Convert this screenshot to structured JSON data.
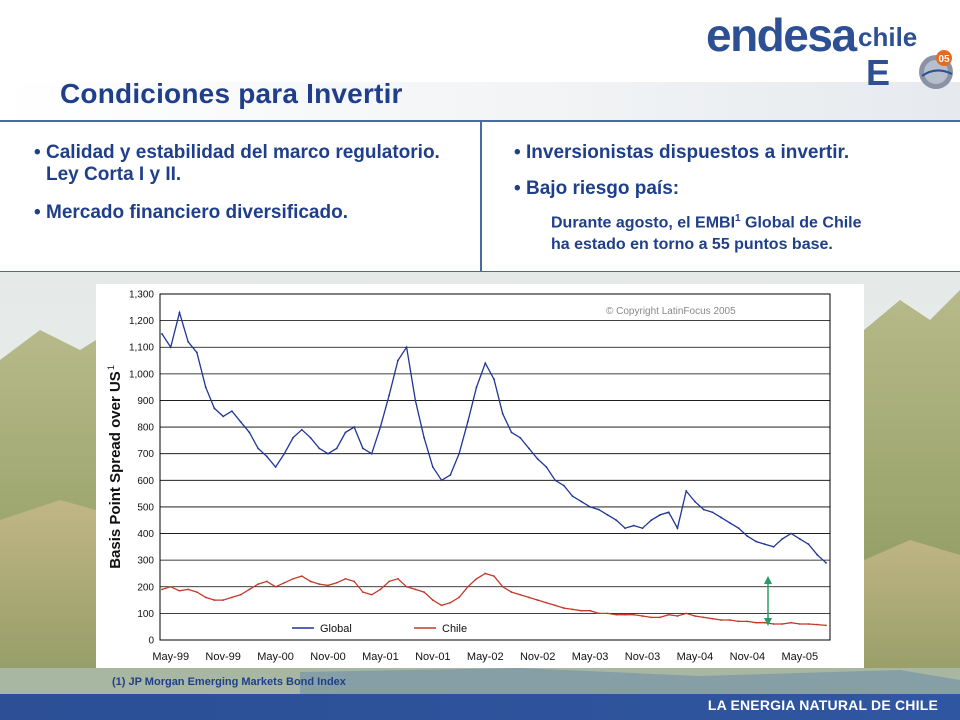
{
  "header": {
    "title": "Condiciones para Invertir",
    "logo_word": "endesa",
    "logo_sub": "chile",
    "logo_em": "E",
    "logo_badge": "05"
  },
  "left_bullets": [
    "Calidad y estabilidad del marco regulatorio. Ley Corta I y II.",
    "Mercado financiero diversificado."
  ],
  "right_bullets": [
    "Inversionistas dispuestos a invertir.",
    "Bajo riesgo país:"
  ],
  "right_detail": {
    "line1_pre": "Durante agosto, el EMBI",
    "sup": "1",
    "line1_post": " Global de Chile",
    "line2": "ha estado en torno a 55 puntos base."
  },
  "footnote": "(1) JP Morgan Emerging Markets Bond Index",
  "footer": {
    "tagline": "LA ENERGIA NATURAL DE CHILE"
  },
  "colors": {
    "title": "#1f3f8a",
    "global": "#1f3596",
    "chile": "#c23a2a",
    "arrow": "#2a9a6a",
    "footer": "#2c4f96"
  },
  "chart_data": {
    "type": "line",
    "title": "",
    "ylabel": "Basis Point Spread over US",
    "ylim": [
      0,
      1300
    ],
    "yticks": [
      "0",
      "100",
      "200",
      "300",
      "400",
      "500",
      "600",
      "700",
      "800",
      "900",
      "1,000",
      "1,100",
      "1,200",
      "1,300"
    ],
    "xticks": [
      "May-99",
      "Nov-99",
      "May-00",
      "Nov-00",
      "May-01",
      "Nov-01",
      "May-02",
      "Nov-02",
      "May-03",
      "Nov-03",
      "May-04",
      "Nov-04",
      "May-05"
    ],
    "copyright": "© Copyright LatinFocus 2005",
    "grid": true,
    "legend": "bottom",
    "x": [
      "Apr-99",
      "May-99",
      "Jun-99",
      "Jul-99",
      "Aug-99",
      "Sep-99",
      "Oct-99",
      "Nov-99",
      "Dec-99",
      "Jan-00",
      "Feb-00",
      "Mar-00",
      "Apr-00",
      "May-00",
      "Jun-00",
      "Jul-00",
      "Aug-00",
      "Sep-00",
      "Oct-00",
      "Nov-00",
      "Dec-00",
      "Jan-01",
      "Feb-01",
      "Mar-01",
      "Apr-01",
      "May-01",
      "Jun-01",
      "Jul-01",
      "Aug-01",
      "Sep-01",
      "Oct-01",
      "Nov-01",
      "Dec-01",
      "Jan-02",
      "Feb-02",
      "Mar-02",
      "Apr-02",
      "May-02",
      "Jun-02",
      "Jul-02",
      "Aug-02",
      "Sep-02",
      "Oct-02",
      "Nov-02",
      "Dec-02",
      "Jan-03",
      "Feb-03",
      "Mar-03",
      "Apr-03",
      "May-03",
      "Jun-03",
      "Jul-03",
      "Aug-03",
      "Sep-03",
      "Oct-03",
      "Nov-03",
      "Dec-03",
      "Jan-04",
      "Feb-04",
      "Mar-04",
      "Apr-04",
      "May-04",
      "Jun-04",
      "Jul-04",
      "Aug-04",
      "Sep-04",
      "Oct-04",
      "Nov-04",
      "Dec-04",
      "Jan-05",
      "Feb-05",
      "Mar-05",
      "Apr-05",
      "May-05",
      "Jun-05",
      "Jul-05",
      "Aug-05"
    ],
    "series": [
      {
        "name": "Global",
        "values": [
          1150,
          1100,
          1230,
          1120,
          1080,
          950,
          870,
          840,
          860,
          820,
          780,
          720,
          690,
          650,
          700,
          760,
          790,
          760,
          720,
          700,
          720,
          780,
          800,
          720,
          700,
          800,
          920,
          1050,
          1100,
          900,
          760,
          650,
          600,
          620,
          700,
          820,
          950,
          1040,
          980,
          850,
          780,
          760,
          720,
          680,
          650,
          600,
          580,
          540,
          520,
          500,
          490,
          470,
          450,
          420,
          430,
          420,
          450,
          470,
          480,
          420,
          560,
          520,
          490,
          480,
          460,
          440,
          420,
          390,
          370,
          360,
          350,
          380,
          400,
          380,
          360,
          320,
          290
        ]
      },
      {
        "name": "Chile",
        "values": [
          190,
          200,
          185,
          190,
          180,
          160,
          150,
          150,
          160,
          170,
          190,
          210,
          220,
          200,
          215,
          230,
          240,
          220,
          210,
          205,
          215,
          230,
          220,
          180,
          170,
          190,
          220,
          230,
          200,
          190,
          180,
          150,
          130,
          140,
          160,
          200,
          230,
          250,
          240,
          200,
          180,
          170,
          160,
          150,
          140,
          130,
          120,
          115,
          110,
          110,
          100,
          100,
          95,
          95,
          95,
          90,
          85,
          85,
          95,
          90,
          100,
          90,
          85,
          80,
          75,
          75,
          70,
          70,
          65,
          65,
          60,
          60,
          65,
          60,
          60,
          58,
          55
        ]
      }
    ]
  }
}
